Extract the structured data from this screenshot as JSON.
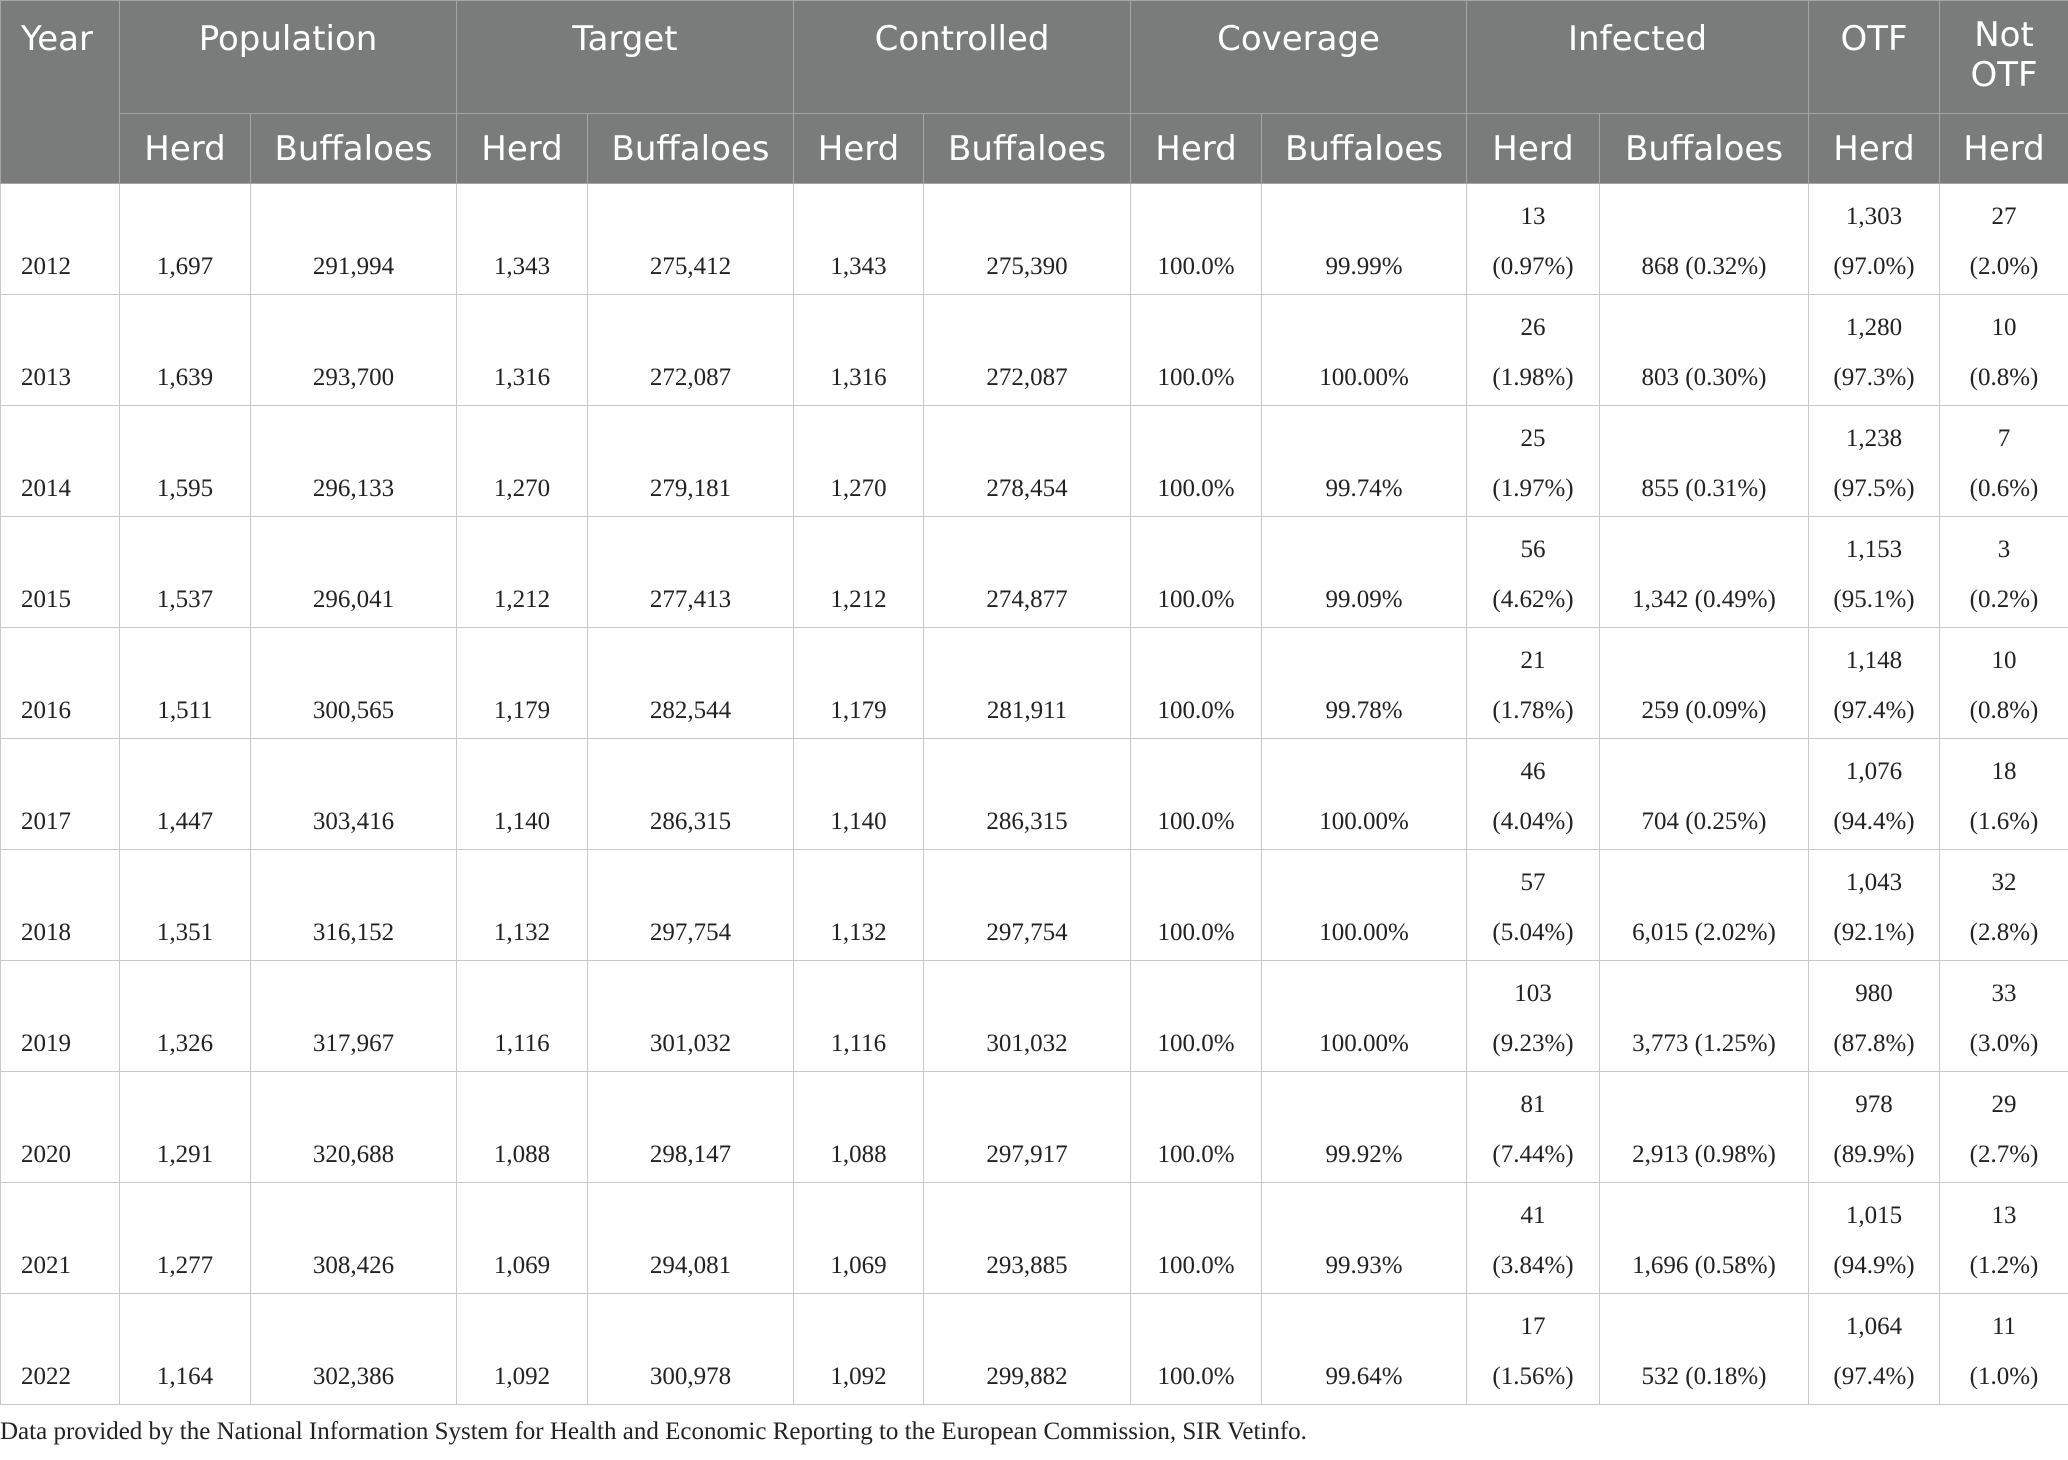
{
  "headers": {
    "groups": [
      "Year",
      "Population",
      "Target",
      "Controlled",
      "Coverage",
      "Infected",
      "OTF",
      "Not OTF"
    ],
    "subs": [
      "Herd",
      "Buffaloes",
      "Herd",
      "Buffaloes",
      "Herd",
      "Buffaloes",
      "Herd",
      "Buffaloes",
      "Herd",
      "Buffaloes",
      "Herd",
      "Herd"
    ]
  },
  "rows": [
    {
      "year": "2012",
      "cells": [
        "1,697",
        "291,994",
        "1,343",
        "275,412",
        "1,343",
        "275,390",
        "100.0%",
        "99.99%",
        "13\n(0.97%)",
        "868 (0.32%)",
        "1,303\n(97.0%)",
        "27\n(2.0%)"
      ]
    },
    {
      "year": "2013",
      "cells": [
        "1,639",
        "293,700",
        "1,316",
        "272,087",
        "1,316",
        "272,087",
        "100.0%",
        "100.00%",
        "26\n(1.98%)",
        "803 (0.30%)",
        "1,280\n(97.3%)",
        "10\n(0.8%)"
      ]
    },
    {
      "year": "2014",
      "cells": [
        "1,595",
        "296,133",
        "1,270",
        "279,181",
        "1,270",
        "278,454",
        "100.0%",
        "99.74%",
        "25\n(1.97%)",
        "855 (0.31%)",
        "1,238\n(97.5%)",
        "7\n(0.6%)"
      ]
    },
    {
      "year": "2015",
      "cells": [
        "1,537",
        "296,041",
        "1,212",
        "277,413",
        "1,212",
        "274,877",
        "100.0%",
        "99.09%",
        "56\n(4.62%)",
        "1,342 (0.49%)",
        "1,153\n(95.1%)",
        "3\n(0.2%)"
      ]
    },
    {
      "year": "2016",
      "cells": [
        "1,511",
        "300,565",
        "1,179",
        "282,544",
        "1,179",
        "281,911",
        "100.0%",
        "99.78%",
        "21\n(1.78%)",
        "259 (0.09%)",
        "1,148\n(97.4%)",
        "10\n(0.8%)"
      ]
    },
    {
      "year": "2017",
      "cells": [
        "1,447",
        "303,416",
        "1,140",
        "286,315",
        "1,140",
        "286,315",
        "100.0%",
        "100.00%",
        "46\n(4.04%)",
        "704 (0.25%)",
        "1,076\n(94.4%)",
        "18\n(1.6%)"
      ]
    },
    {
      "year": "2018",
      "cells": [
        "1,351",
        "316,152",
        "1,132",
        "297,754",
        "1,132",
        "297,754",
        "100.0%",
        "100.00%",
        "57\n(5.04%)",
        "6,015 (2.02%)",
        "1,043\n(92.1%)",
        "32\n(2.8%)"
      ]
    },
    {
      "year": "2019",
      "cells": [
        "1,326",
        "317,967",
        "1,116",
        "301,032",
        "1,116",
        "301,032",
        "100.0%",
        "100.00%",
        "103\n(9.23%)",
        "3,773 (1.25%)",
        "980\n(87.8%)",
        "33\n(3.0%)"
      ]
    },
    {
      "year": "2020",
      "cells": [
        "1,291",
        "320,688",
        "1,088",
        "298,147",
        "1,088",
        "297,917",
        "100.0%",
        "99.92%",
        "81\n(7.44%)",
        "2,913 (0.98%)",
        "978\n(89.9%)",
        "29\n(2.7%)"
      ]
    },
    {
      "year": "2021",
      "cells": [
        "1,277",
        "308,426",
        "1,069",
        "294,081",
        "1,069",
        "293,885",
        "100.0%",
        "99.93%",
        "41\n(3.84%)",
        "1,696 (0.58%)",
        "1,015\n(94.9%)",
        "13\n(1.2%)"
      ]
    },
    {
      "year": "2022",
      "cells": [
        "1,164",
        "302,386",
        "1,092",
        "300,978",
        "1,092",
        "299,882",
        "100.0%",
        "99.64%",
        "17\n(1.56%)",
        "532 (0.18%)",
        "1,064\n(97.4%)",
        "11\n(1.0%)"
      ]
    }
  ],
  "footnote": "Data provided by the National Information System for Health and Economic Reporting to the European Commission, SIR Vetinfo."
}
